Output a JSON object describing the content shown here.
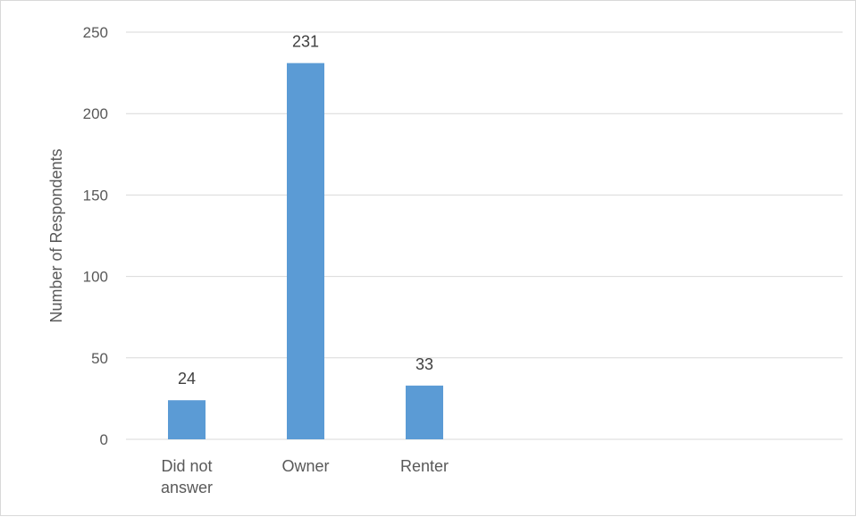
{
  "chart_data": {
    "type": "bar",
    "title": "",
    "xlabel": "",
    "ylabel": "Number  of Respondents",
    "categories": [
      [
        "Did not",
        "answer"
      ],
      [
        "Owner"
      ],
      [
        "Renter"
      ]
    ],
    "category_names": [
      "Did not answer",
      "Owner",
      "Renter"
    ],
    "values": [
      24,
      231,
      33
    ],
    "data_labels": [
      "24",
      "231",
      "33"
    ],
    "ylim": [
      0,
      250
    ],
    "yticks": [
      0,
      50,
      100,
      150,
      200,
      250
    ],
    "ytick_labels": [
      "0",
      "50",
      "100",
      "150",
      "200",
      "250"
    ],
    "grid": true,
    "legend": "none",
    "colors": {
      "bar": "#5b9bd5",
      "grid": "#d9d9d9",
      "axis": "#d9d9d9",
      "text": "#595959"
    }
  }
}
